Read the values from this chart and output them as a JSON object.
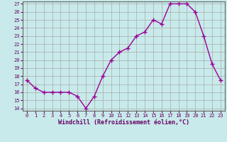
{
  "x": [
    0,
    1,
    2,
    3,
    4,
    5,
    6,
    7,
    8,
    9,
    10,
    11,
    12,
    13,
    14,
    15,
    16,
    17,
    18,
    19,
    20,
    21,
    22,
    23
  ],
  "y": [
    17.5,
    16.5,
    16.0,
    16.0,
    16.0,
    16.0,
    15.5,
    14.0,
    15.5,
    18.0,
    20.0,
    21.0,
    21.5,
    23.0,
    23.5,
    25.0,
    24.5,
    27.0,
    27.0,
    27.0,
    26.0,
    23.0,
    19.5,
    17.5
  ],
  "line_color": "#990099",
  "marker": "+",
  "marker_size": 4,
  "bg_color": "#c8eaea",
  "grid_color": "#aaaaaa",
  "xlabel": "Windchill (Refroidissement éolien,°C)",
  "xlabel_color": "#660066",
  "tick_label_color": "#660066",
  "ylim": [
    14,
    27
  ],
  "xlim": [
    -0.5,
    23.5
  ],
  "yticks": [
    14,
    15,
    16,
    17,
    18,
    19,
    20,
    21,
    22,
    23,
    24,
    25,
    26,
    27
  ],
  "xticks": [
    0,
    1,
    2,
    3,
    4,
    5,
    6,
    7,
    8,
    9,
    10,
    11,
    12,
    13,
    14,
    15,
    16,
    17,
    18,
    19,
    20,
    21,
    22,
    23
  ],
  "linewidth": 1.0
}
